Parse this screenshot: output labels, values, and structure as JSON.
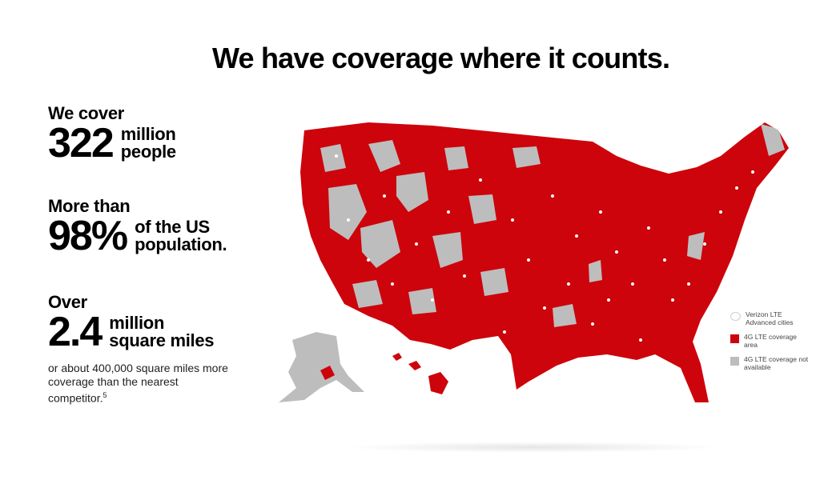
{
  "headline": "We have coverage where it counts.",
  "stats": [
    {
      "pre": "We cover",
      "big": "322",
      "side1": "million",
      "side2": "people"
    },
    {
      "pre": "More than",
      "big": "98%",
      "side1": "of the US",
      "side2": "population."
    },
    {
      "pre": "Over",
      "big": "2.4",
      "side1": "million",
      "side2": "square miles"
    }
  ],
  "footnote": {
    "text": "or about 400,000 square miles more coverage than the nearest competitor.",
    "sup": "5"
  },
  "legend": [
    {
      "label": "Verizon LTE Advanced cities",
      "icon": "white-dot-icon",
      "color": "#ffffff"
    },
    {
      "label": "4G LTE coverage area",
      "icon": "red-square-icon",
      "color": "#cd040b"
    },
    {
      "label": "4G LTE coverage not available",
      "icon": "gray-square-icon",
      "color": "#bdbdbd"
    }
  ],
  "colors": {
    "coverage": "#cd040b",
    "no_coverage": "#bdbdbd",
    "city_dot": "#ffffff"
  }
}
